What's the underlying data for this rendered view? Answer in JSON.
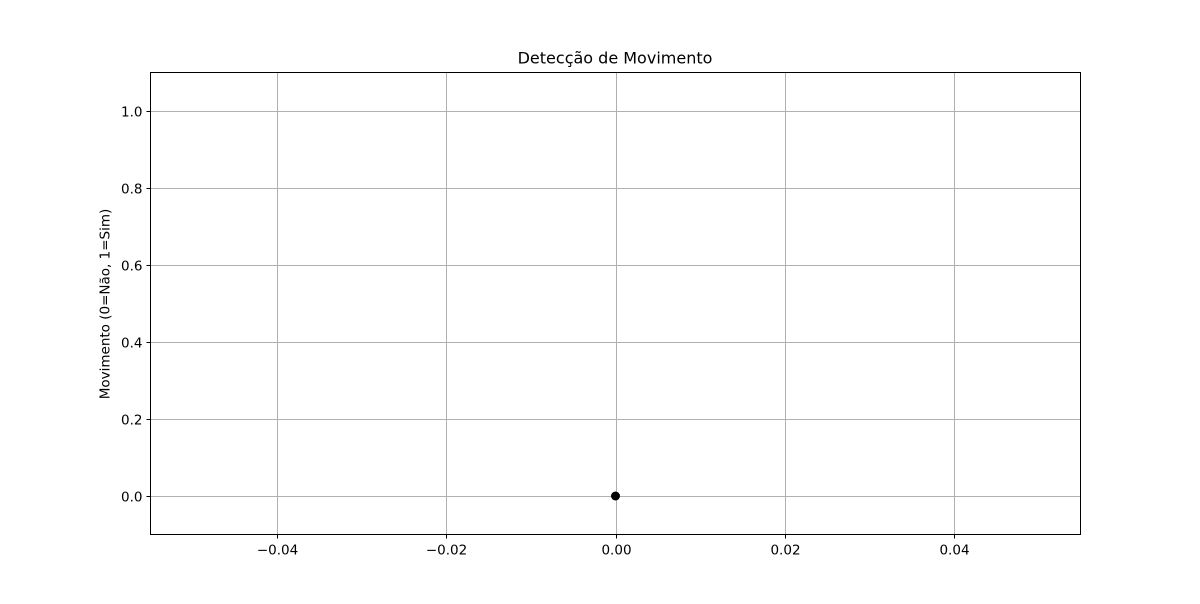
{
  "chart_data": {
    "type": "scatter",
    "title": "Detecção de Movimento",
    "xlabel": "",
    "ylabel": "Movimento (0=Não, 1=Sim)",
    "xlim": [
      -0.055,
      0.055
    ],
    "ylim": [
      -0.1,
      1.1
    ],
    "x_ticks": [
      -0.04,
      -0.02,
      0.0,
      0.02,
      0.04
    ],
    "x_tick_labels": [
      "−0.04",
      "−0.02",
      "0.00",
      "0.02",
      "0.04"
    ],
    "y_ticks": [
      0.0,
      0.2,
      0.4,
      0.6,
      0.8,
      1.0
    ],
    "y_tick_labels": [
      "0.0",
      "0.2",
      "0.4",
      "0.6",
      "0.8",
      "1.0"
    ],
    "grid": true,
    "series": [
      {
        "color": "#000000",
        "x": [
          0.0
        ],
        "y": [
          0
        ]
      }
    ]
  }
}
